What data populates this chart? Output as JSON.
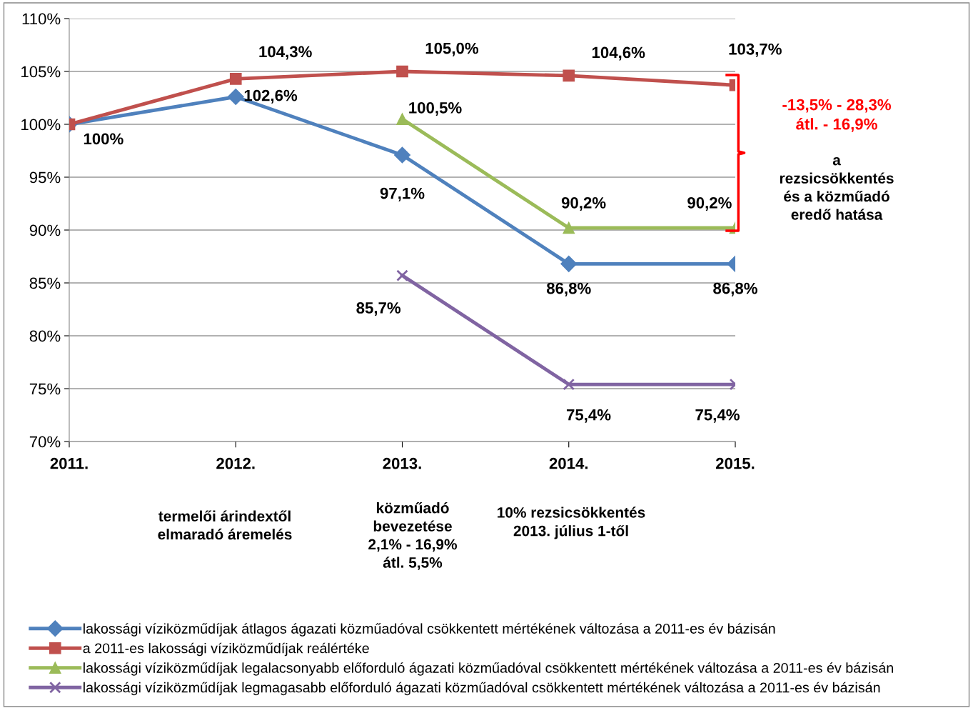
{
  "chart_data": {
    "type": "line",
    "categories": [
      "2011.",
      "2012.",
      "2013.",
      "2014.",
      "2015."
    ],
    "series": [
      {
        "name": "lakossági víziközműdíjak átlagos ágazati közműadóval csökkentett mértékének változása a 2011-es év bázisán",
        "color": "#4f81bd",
        "marker": "diamond",
        "values": [
          100,
          102.6,
          97.1,
          86.8,
          86.8
        ],
        "value_labels": [
          "100%",
          "102,6%",
          "97,1%",
          "86,8%",
          "86,8%"
        ]
      },
      {
        "name": "a 2011-es lakossági víziközműdíjak reálértéke",
        "color": "#c0504d",
        "marker": "square",
        "values": [
          100,
          104.3,
          105.0,
          104.6,
          103.7
        ],
        "value_labels": [
          null,
          "104,3%",
          "105,0%",
          "104,6%",
          "103,7%"
        ]
      },
      {
        "name": "lakossági víziközműdíjak legalacsonyabb előforduló ágazati közműadóval csökkentett mértékének változása a 2011-es év bázisán",
        "color": "#9bbb59",
        "marker": "triangle",
        "values": [
          null,
          null,
          100.5,
          90.2,
          90.2
        ],
        "value_labels": [
          null,
          null,
          "100,5%",
          "90,2%",
          "90,2%"
        ]
      },
      {
        "name": "lakossági víziközműdíjak legmagasabb előforduló ágazati közműadóval csökkentett mértékének változása a 2011-es év bázisán",
        "color": "#8064a2",
        "marker": "cross",
        "values": [
          null,
          null,
          85.7,
          75.4,
          75.4
        ],
        "value_labels": [
          null,
          null,
          "85,7%",
          "75,4%",
          "75,4%"
        ]
      }
    ],
    "ylim": [
      70,
      110
    ],
    "yticks": [
      {
        "value": 70,
        "label": "70%"
      },
      {
        "value": 75,
        "label": "75%"
      },
      {
        "value": 80,
        "label": "80%"
      },
      {
        "value": 85,
        "label": "85%"
      },
      {
        "value": 90,
        "label": "90%"
      },
      {
        "value": 95,
        "label": "95%"
      },
      {
        "value": 100,
        "label": "100%"
      },
      {
        "value": 105,
        "label": "105%"
      },
      {
        "value": 110,
        "label": "110%"
      }
    ],
    "grid": "y",
    "legend": "bottom",
    "line_style": "solid",
    "annotations": [
      "termelői árindextől\nelmaradó áremelés",
      "közműadó\nbevezetése\n2,1% - 16,9%\nátl. 5,5%",
      "10% rezsicsökkentés\n2013. július 1-től",
      "-13,5% - 28,3%\nátl. - 16,9%",
      "a\nrezsicsökkentés\nés a közműadó\neredő hatása"
    ]
  }
}
